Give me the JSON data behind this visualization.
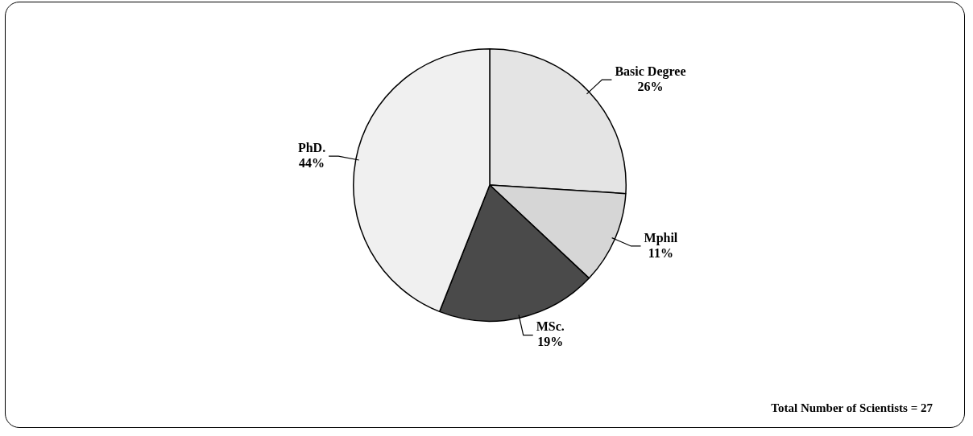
{
  "chart_data": {
    "type": "pie",
    "categories": [
      "Basic Degree",
      "Mphil",
      "MSc.",
      "PhD."
    ],
    "values": [
      26,
      11,
      19,
      44
    ],
    "value_labels": [
      "26%",
      "11%",
      "19%",
      "44%"
    ],
    "colors": [
      "#e4e4e4",
      "#d6d6d6",
      "#4a4a4a",
      "#f0f0f0"
    ],
    "legend": false,
    "annotations": [
      "Total Number of Scientists = 27"
    ]
  }
}
